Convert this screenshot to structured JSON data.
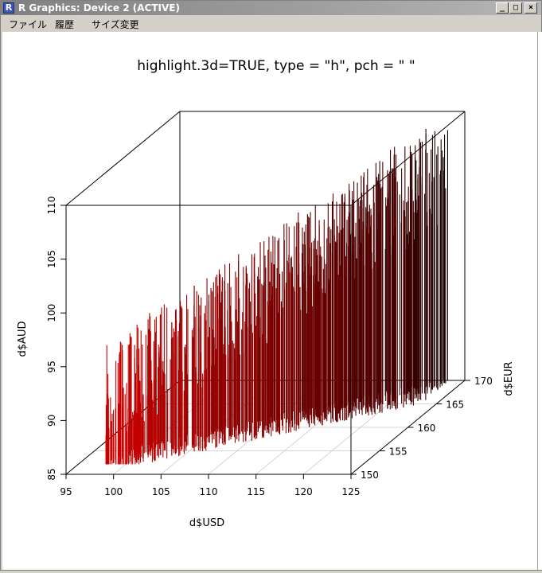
{
  "window": {
    "title": "R Graphics: Device 2 (ACTIVE)",
    "app_icon": "R",
    "buttons": {
      "minimize": "_",
      "maximize": "□",
      "close": "×"
    }
  },
  "menu": {
    "items": [
      "ファイル",
      "履歴",
      "サイズ変更"
    ]
  },
  "chart_data": {
    "type": "scatter3d",
    "title": "highlight.3d=TRUE, type = \"h\", pch = \" \"",
    "xlabel": "d$USD",
    "ylabel": "d$EUR",
    "zlabel": "d$AUD",
    "xlim": [
      95,
      125
    ],
    "ylim": [
      150,
      170
    ],
    "zlim": [
      85,
      110
    ],
    "x_ticks": [
      95,
      100,
      105,
      110,
      115,
      120,
      125
    ],
    "y_ticks": [
      150,
      155,
      160,
      165,
      170
    ],
    "z_ticks": [
      85,
      90,
      95,
      100,
      105,
      110
    ],
    "grid": true,
    "highlight_colors": {
      "near": "#cc0000",
      "far": "#000000"
    },
    "sample_points": [
      {
        "x": 103,
        "y": 153,
        "z": 95
      },
      {
        "x": 108,
        "y": 156,
        "z": 100
      },
      {
        "x": 113,
        "y": 159,
        "z": 104
      },
      {
        "x": 118,
        "y": 162,
        "z": 106
      },
      {
        "x": 122,
        "y": 165,
        "z": 108
      }
    ]
  }
}
